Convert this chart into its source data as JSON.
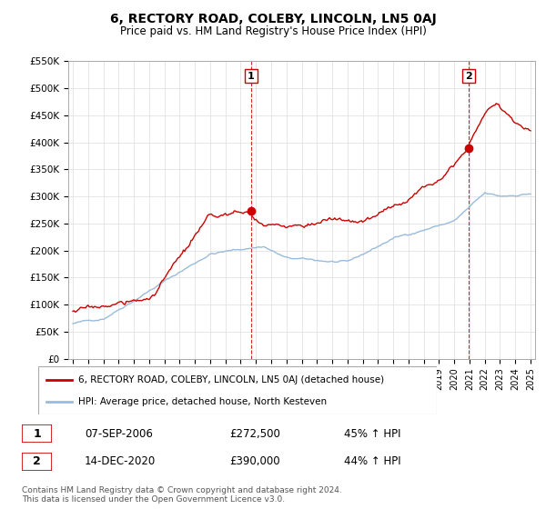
{
  "title": "6, RECTORY ROAD, COLEBY, LINCOLN, LN5 0AJ",
  "subtitle": "Price paid vs. HM Land Registry's House Price Index (HPI)",
  "legend_line1": "6, RECTORY ROAD, COLEBY, LINCOLN, LN5 0AJ (detached house)",
  "legend_line2": "HPI: Average price, detached house, North Kesteven",
  "annotation1_label": "1",
  "annotation1_date": "07-SEP-2006",
  "annotation1_price": "£272,500",
  "annotation1_hpi": "45% ↑ HPI",
  "annotation2_label": "2",
  "annotation2_date": "14-DEC-2020",
  "annotation2_price": "£390,000",
  "annotation2_hpi": "44% ↑ HPI",
  "footnote": "Contains HM Land Registry data © Crown copyright and database right 2024.\nThis data is licensed under the Open Government Licence v3.0.",
  "house_color": "#cc0000",
  "hpi_color": "#99bbdd",
  "vline_color": "#cc0000",
  "background_color": "#ffffff",
  "grid_color": "#dddddd",
  "ylim": [
    0,
    550000
  ],
  "yticks": [
    0,
    50000,
    100000,
    150000,
    200000,
    250000,
    300000,
    350000,
    400000,
    450000,
    500000,
    550000
  ],
  "sale1_year": 2006.69,
  "sale1_value": 272500,
  "sale2_year": 2020.95,
  "sale2_value": 390000
}
